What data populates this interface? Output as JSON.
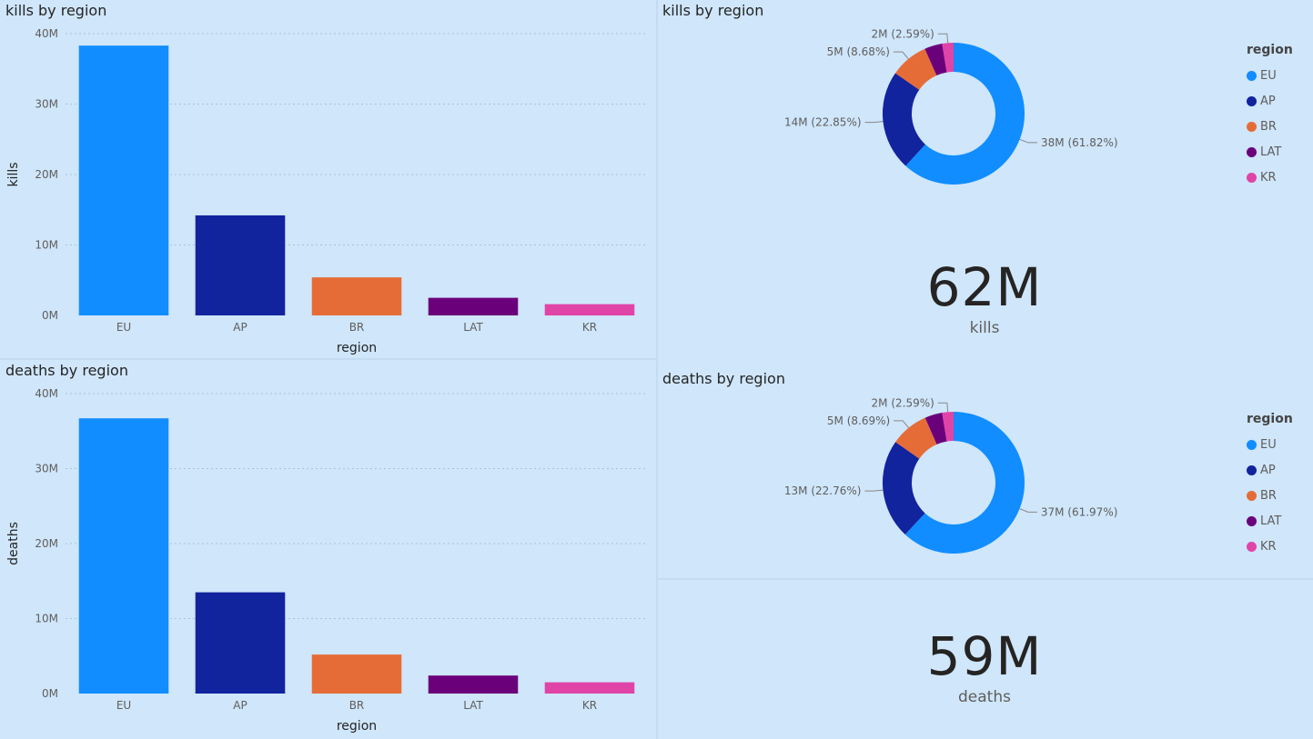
{
  "colors": {
    "EU": "#118dff",
    "AP": "#12239e",
    "BR": "#e66c37",
    "LAT": "#6b007b",
    "KR": "#e044a7"
  },
  "kills_bar": {
    "title": "kills by region"
  },
  "deaths_bar": {
    "title": "deaths by region"
  },
  "kills_donut": {
    "title": "kills by region",
    "legend_title": "region"
  },
  "deaths_donut": {
    "title": "deaths by region",
    "legend_title": "region"
  },
  "kills_card": {
    "value": "62M",
    "label": "kills"
  },
  "deaths_card": {
    "value": "59M",
    "label": "deaths"
  },
  "chart_data": [
    {
      "id": "kills_bar",
      "type": "bar",
      "title": "kills by region",
      "xlabel": "region",
      "ylabel": "kills",
      "categories": [
        "EU",
        "AP",
        "BR",
        "LAT",
        "KR"
      ],
      "values": [
        38300000,
        14200000,
        5400000,
        2500000,
        1600000
      ],
      "ylim": [
        0,
        40000000
      ],
      "yticks": [
        0,
        10000000,
        20000000,
        30000000,
        40000000
      ],
      "ytick_labels": [
        "0M",
        "10M",
        "20M",
        "30M",
        "40M"
      ],
      "grid": true
    },
    {
      "id": "deaths_bar",
      "type": "bar",
      "title": "deaths by region",
      "xlabel": "region",
      "ylabel": "deaths",
      "categories": [
        "EU",
        "AP",
        "BR",
        "LAT",
        "KR"
      ],
      "values": [
        36700000,
        13500000,
        5200000,
        2400000,
        1500000
      ],
      "ylim": [
        0,
        40000000
      ],
      "yticks": [
        0,
        10000000,
        20000000,
        30000000,
        40000000
      ],
      "ytick_labels": [
        "0M",
        "10M",
        "20M",
        "30M",
        "40M"
      ],
      "grid": true
    },
    {
      "id": "kills_donut",
      "type": "pie",
      "title": "kills by region",
      "legend_title": "region",
      "legend_position": "right",
      "categories": [
        "EU",
        "AP",
        "BR",
        "LAT",
        "KR"
      ],
      "percentages": [
        61.82,
        22.85,
        8.68,
        4.06,
        2.59
      ],
      "data_labels": [
        "38M (61.82%)",
        "14M (22.85%)",
        "5M (8.68%)",
        "",
        "2M (2.59%)"
      ]
    },
    {
      "id": "deaths_donut",
      "type": "pie",
      "title": "deaths by region",
      "legend_title": "region",
      "legend_position": "right",
      "categories": [
        "EU",
        "AP",
        "BR",
        "LAT",
        "KR"
      ],
      "percentages": [
        61.97,
        22.76,
        8.69,
        3.99,
        2.59
      ],
      "data_labels": [
        "37M (61.97%)",
        "13M (22.76%)",
        "5M (8.69%)",
        "",
        "2M (2.59%)"
      ]
    }
  ]
}
